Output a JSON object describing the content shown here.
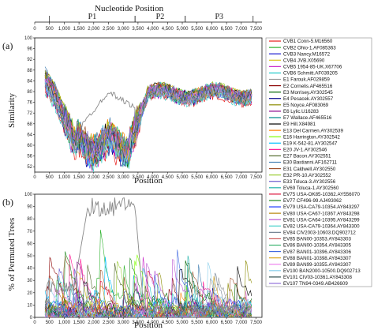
{
  "header": {
    "title": "Nucleotide Position"
  },
  "regions": [
    {
      "label": "P1",
      "start": 500,
      "end": 3400
    },
    {
      "label": "P2",
      "start": 3400,
      "end": 5100
    },
    {
      "label": "P3",
      "start": 5100,
      "end": 7400
    }
  ],
  "x_ticks": [
    0,
    500,
    1000,
    1500,
    2000,
    2500,
    3000,
    3500,
    4000,
    4500,
    5000,
    5500,
    6000,
    6500,
    7000,
    7500
  ],
  "x_tick_labels": [
    "0",
    "500",
    "1,000",
    "1,500",
    "2,000",
    "2,500",
    "3,000",
    "3,500",
    "4,000",
    "4,500",
    "5,000",
    "5,500",
    "6,000",
    "6,500",
    "7,000",
    "7,500"
  ],
  "panel_a": {
    "label": "(a)",
    "ylabel": "Similarity",
    "xlabel": "Position",
    "ylim": [
      50,
      100
    ],
    "y_ticks": [
      52,
      56,
      60,
      64,
      68,
      72,
      76,
      80,
      84,
      88,
      92,
      96,
      100
    ],
    "xlim": [
      0,
      7700
    ]
  },
  "panel_b": {
    "label": "(b)",
    "ylabel": "% of Permuted Trees",
    "xlabel": "Position",
    "ylim": [
      0,
      100
    ],
    "y_ticks": [
      0,
      10,
      20,
      30,
      40,
      50,
      60,
      70,
      80,
      90,
      100
    ],
    "xlim": [
      0,
      7700
    ]
  },
  "legend": [
    {
      "label": "CVB1 Conn-5.M16560",
      "color": "#e8201d"
    },
    {
      "label": "CVB2 Ohio-1.AF085363",
      "color": "#2db22d"
    },
    {
      "label": "CVB3 Nancy.M16572",
      "color": "#1c1cd0"
    },
    {
      "label": "CVB4 JVB.X05690",
      "color": "#d9c61c"
    },
    {
      "label": "CVB5 1954-85-UK.X67706",
      "color": "#c81ec8"
    },
    {
      "label": "CVB6 Schmitt.AF039205",
      "color": "#1cc8c8"
    },
    {
      "label": "E1 Farouk.AF029859",
      "color": "#999999"
    },
    {
      "label": "E2 Cornelis.AF465516",
      "color": "#8b0000"
    },
    {
      "label": "E3 Morrisey.AY302545",
      "color": "#006400"
    },
    {
      "label": "E4 Pesacek.AY302557",
      "color": "#00008b"
    },
    {
      "label": "E5 Noyce.AF083069",
      "color": "#8b8b00"
    },
    {
      "label": "E6 Lylic.U16283",
      "color": "#8b008b"
    },
    {
      "label": "E7 Wallace.AF465516",
      "color": "#008b8b"
    },
    {
      "label": "E9 Hill.X84981",
      "color": "#000000"
    },
    {
      "label": "E13 Del Carmen.AY302539",
      "color": "#ff7f00"
    },
    {
      "label": "E16 Harrington.AY302542",
      "color": "#7fff00"
    },
    {
      "label": "E19 K-542-81.AY302547",
      "color": "#00bfff"
    },
    {
      "label": "E20 JV-1.AY302546",
      "color": "#ff1493"
    },
    {
      "label": "E27 Bacon.AY302551",
      "color": "#556b2f"
    },
    {
      "label": "E30 Bastianni.AF162711",
      "color": "#4682b4"
    },
    {
      "label": "E31 Caldwell.AY302550",
      "color": "#a0522d"
    },
    {
      "label": "E32 PR-10.AY302552",
      "color": "#9acd32"
    },
    {
      "label": "E33 Toluca-3.AY302556",
      "color": "#6a5acd"
    },
    {
      "label": "EV69 Toluca-1.AY302560",
      "color": "#20b2aa"
    },
    {
      "label": "EV75 USA-OK85-10362.AY556070",
      "color": "#dc143c"
    },
    {
      "label": "EV77 CF496-99.AJ493062",
      "color": "#228b22"
    },
    {
      "label": "EV79 USA-CA79-10354.AY843297",
      "color": "#1e3cff"
    },
    {
      "label": "EV80 USA-CA67-10367.AY843298",
      "color": "#b8860b"
    },
    {
      "label": "EV81 USA-CA64-10395.AY843299",
      "color": "#ba55d3"
    },
    {
      "label": "EV82 USA-CA79-10364.AY843300",
      "color": "#48d1cc"
    },
    {
      "label": "EV84 CIV2003-10603.DQ902712",
      "color": "#708090"
    },
    {
      "label": "EV85 BAN00-10353.AY843303",
      "color": "#cd5c5c"
    },
    {
      "label": "EV86 BAN00-10354.AY843305",
      "color": "#3cb371"
    },
    {
      "label": "EV87 BAN01-10396.AY843306",
      "color": "#4169e1"
    },
    {
      "label": "EV88 BAN01-10398.AY843307",
      "color": "#daa520"
    },
    {
      "label": "EV89 BAN99-10355.AY843307",
      "color": "#ee82ee"
    },
    {
      "label": "EV100 BAN2000-10500.DQ902713",
      "color": "#87ceeb"
    },
    {
      "label": "EV101 CIV03-10361.AY843308",
      "color": "#2f4f4f"
    },
    {
      "label": "EV107 TN94-0349.AB426609",
      "color": "#9370db"
    }
  ]
}
